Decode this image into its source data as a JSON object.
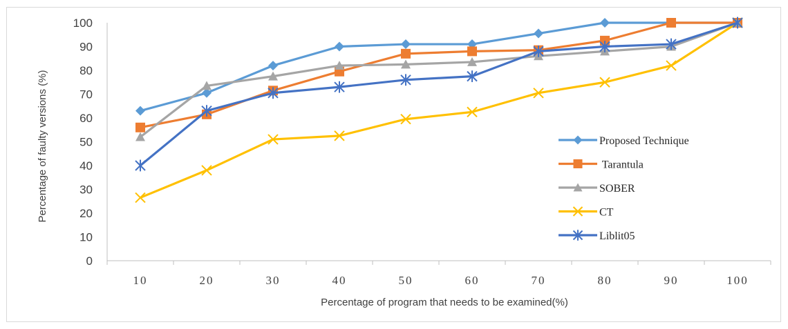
{
  "chart_data": {
    "type": "line",
    "x": [
      10,
      20,
      30,
      40,
      50,
      60,
      70,
      80,
      90,
      100
    ],
    "xlabel": "Percentage of program that needs to be examined(%)",
    "ylabel": "Percentage of faulty versions (%)",
    "ylim": [
      0,
      100
    ],
    "yticks": [
      0,
      10,
      20,
      30,
      40,
      50,
      60,
      70,
      80,
      90,
      100
    ],
    "grid": false,
    "legend_position": "right",
    "series": [
      {
        "name": "Proposed Technique",
        "color": "#5B9BD5",
        "marker": "diamond",
        "values": [
          63,
          70.5,
          82,
          90,
          91,
          91,
          95.5,
          100,
          100,
          100
        ]
      },
      {
        "name": " Tarantula",
        "color": "#ED7D31",
        "marker": "square",
        "values": [
          56,
          61.5,
          71.5,
          79.5,
          87,
          88,
          88.5,
          92.5,
          100,
          100
        ]
      },
      {
        "name": "SOBER",
        "color": "#A5A5A5",
        "marker": "triangle",
        "values": [
          52,
          73.5,
          77.5,
          82,
          82.5,
          83.5,
          86,
          88,
          90,
          100
        ]
      },
      {
        "name": "CT",
        "color": "#FFC000",
        "marker": "x",
        "values": [
          26.5,
          38,
          51,
          52.5,
          59.5,
          62.5,
          70.5,
          75,
          82,
          100
        ]
      },
      {
        "name": "Liblit05",
        "color": "#4472C4",
        "marker": "asterisk",
        "values": [
          40,
          63,
          70.5,
          73,
          76,
          77.5,
          88,
          90,
          91,
          100
        ]
      }
    ]
  }
}
